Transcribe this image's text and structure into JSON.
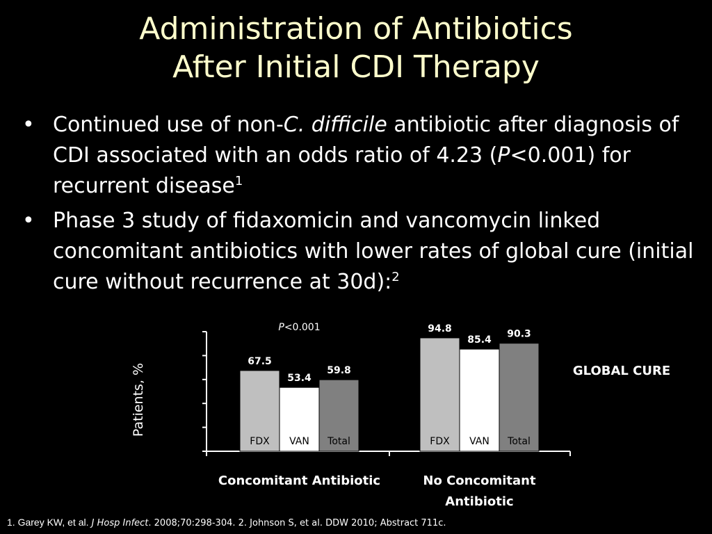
{
  "title": {
    "line1": "Administration of Antibiotics",
    "line2": "After Initial CDI Therapy"
  },
  "bullets": [
    {
      "part1": "Continued use of non-",
      "italic": "C. difficile",
      "part2": " antibiotic after diagnosis of CDI associated with an odds ratio of 4.23 (",
      "p_italic": "P",
      "part3": "<0.001) for recurrent disease",
      "sup": "1"
    },
    {
      "text": "Phase 3 study of fidaxomicin and vancomycin linked concomitant antibiotics with lower rates of global cure (initial cure without recurrence at 30d):",
      "sup": "2"
    }
  ],
  "chart_data": {
    "type": "bar",
    "ylabel": "Patients, %",
    "legend_label": "GLOBAL CURE",
    "ylim": [
      0,
      100
    ],
    "colors": {
      "FDX": "#bfbfbf",
      "VAN": "#ffffff",
      "Total": "#808080"
    },
    "groups": [
      {
        "label_line1": "Concomitant Antibiotic",
        "label_line2": "",
        "annotation_italic": "P",
        "annotation_rest": "<0.001",
        "bars": [
          {
            "category": "FDX",
            "value": 67.5,
            "value_label": "67.5"
          },
          {
            "category": "VAN",
            "value": 53.4,
            "value_label": "53.4"
          },
          {
            "category": "Total",
            "value": 59.8,
            "value_label": "59.8"
          }
        ]
      },
      {
        "label_line1": "No Concomitant",
        "label_line2": "Antibiotic",
        "bars": [
          {
            "category": "FDX",
            "value": 94.8,
            "value_label": "94.8"
          },
          {
            "category": "VAN",
            "value": 85.4,
            "value_label": "85.4"
          },
          {
            "category": "Total",
            "value": 90.3,
            "value_label": "90.3"
          }
        ]
      }
    ]
  },
  "footer": {
    "lead": "1. Garey KW, et al.",
    "journal": "J Hosp Infect",
    "rest": ". 2008;70:298-304. 2. Johnson S, et al.  DDW 2010; Abstract 711c."
  }
}
